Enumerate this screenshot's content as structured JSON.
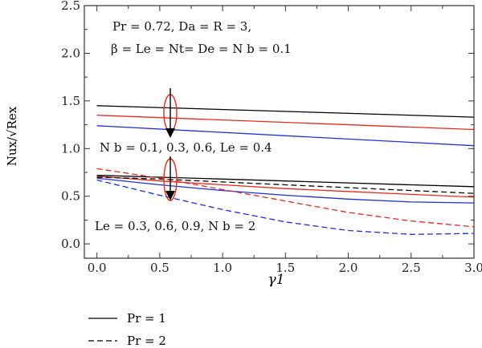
{
  "chart_data": {
    "type": "line",
    "x_ticks": [
      "0.0",
      "0.5",
      "1.0",
      "1.5",
      "2.0",
      "2.5",
      "3.0"
    ],
    "y_ticks": [
      "0.0",
      "0.5",
      "1.0",
      "1.5",
      "2.0",
      "2.5"
    ],
    "xlim": [
      -0.1,
      3.0
    ],
    "ylim": [
      -0.15,
      2.5
    ],
    "grid": false,
    "legend_position": "bottom-left, below plot",
    "series": [
      {
        "key": "nb_pr1_01",
        "color": "#000000",
        "style": "solid",
        "x": [
          0,
          3
        ],
        "y": [
          1.45,
          1.33
        ]
      },
      {
        "key": "nb_pr1_03",
        "color": "#e8281e",
        "style": "solid",
        "x": [
          0,
          3
        ],
        "y": [
          1.35,
          1.2
        ]
      },
      {
        "key": "nb_pr1_06",
        "color": "#1f2fd1",
        "style": "solid",
        "x": [
          0,
          3
        ],
        "y": [
          1.24,
          1.03
        ]
      },
      {
        "key": "le_pr1_03",
        "color": "#000000",
        "style": "solid",
        "x": [
          0,
          0.5,
          1,
          1.5,
          2,
          2.5,
          3
        ],
        "y": [
          0.72,
          0.7,
          0.68,
          0.66,
          0.64,
          0.62,
          0.6
        ]
      },
      {
        "key": "le_pr1_06",
        "color": "#e8281e",
        "style": "solid",
        "x": [
          0,
          0.5,
          1,
          1.5,
          2,
          2.5,
          3
        ],
        "y": [
          0.71,
          0.66,
          0.62,
          0.58,
          0.55,
          0.52,
          0.49
        ]
      },
      {
        "key": "le_pr1_09",
        "color": "#1f2fd1",
        "style": "solid",
        "x": [
          0,
          0.5,
          1,
          1.5,
          2,
          2.5,
          3
        ],
        "y": [
          0.69,
          0.62,
          0.56,
          0.51,
          0.47,
          0.44,
          0.43
        ]
      },
      {
        "key": "le_pr2_03",
        "color": "#000000",
        "style": "dashed",
        "x": [
          0,
          0.5,
          1,
          1.5,
          2,
          2.5,
          3
        ],
        "y": [
          0.7,
          0.68,
          0.65,
          0.62,
          0.59,
          0.56,
          0.53
        ]
      },
      {
        "key": "le_pr2_06",
        "color": "#e8281e",
        "style": "dashed",
        "x": [
          0,
          0.5,
          1,
          1.5,
          2,
          2.5,
          3
        ],
        "y": [
          0.79,
          0.69,
          0.57,
          0.45,
          0.33,
          0.24,
          0.18
        ]
      },
      {
        "key": "le_pr2_09",
        "color": "#1f2fd1",
        "style": "dashed",
        "x": [
          0,
          0.5,
          1,
          1.5,
          2,
          2.5,
          3
        ],
        "y": [
          0.67,
          0.51,
          0.36,
          0.23,
          0.14,
          0.1,
          0.11
        ]
      }
    ]
  },
  "annotations": {
    "params_line1": "Pr = 0.72, Da = R = 3,",
    "params_line2": "β = Le = Nt= De = N b = 0.1",
    "nb_label": "N b = 0.1, 0.3, 0.6, Le = 0.4",
    "le_label": "Le = 0.3, 0.6, 0.9, N b = 2"
  },
  "axes": {
    "xlabel": "γ1",
    "ylabel": "Nux/√Rex"
  },
  "legend": [
    {
      "label": "Pr = 1",
      "style": "solid"
    },
    {
      "label": "Pr = 2",
      "style": "dashed"
    }
  ],
  "colors": {
    "black": "#000000",
    "red": "#e8281e",
    "blue": "#1f2fd1",
    "ellipse": "#e8281e"
  }
}
